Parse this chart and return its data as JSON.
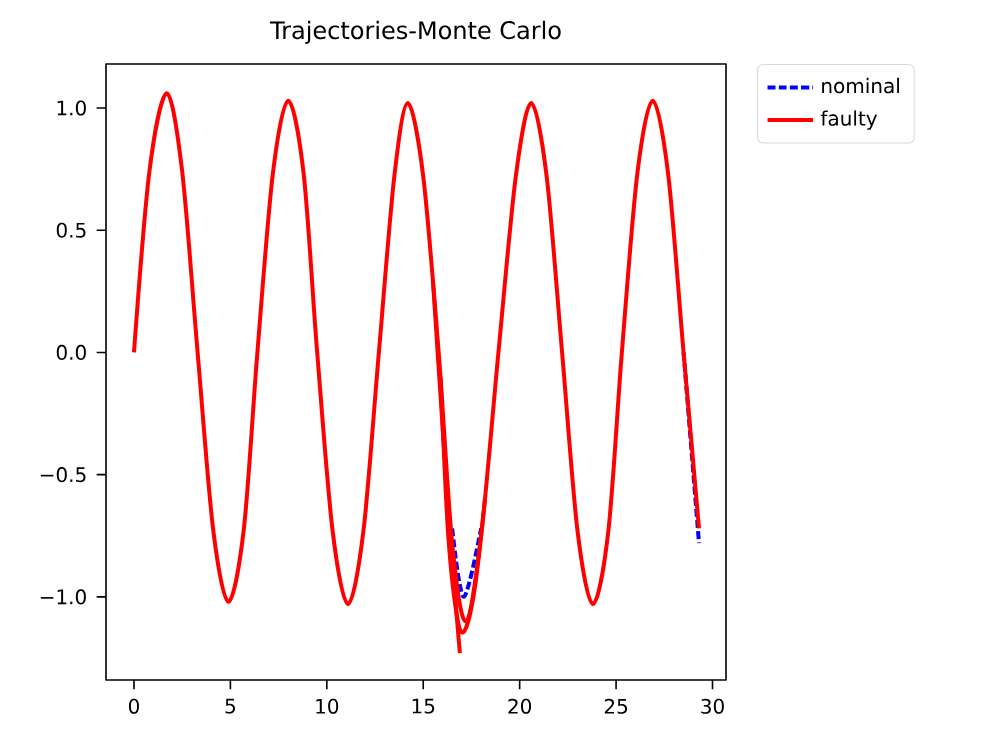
{
  "chart_data": {
    "type": "line",
    "title": "Trajectories-Monte Carlo",
    "xlim": [
      -1.45,
      30.7
    ],
    "ylim": [
      -1.34,
      1.18
    ],
    "xticks": [
      0,
      5,
      10,
      15,
      20,
      25,
      30
    ],
    "yticks": [
      {
        "value": -1,
        "label": "−1.0"
      },
      {
        "value": -0.5,
        "label": "−0.5"
      },
      {
        "value": 0,
        "label": "0.0"
      },
      {
        "value": 0.5,
        "label": "0.5"
      },
      {
        "value": 1,
        "label": "1.0"
      }
    ],
    "legend": "top right",
    "grid": false,
    "marker": "none",
    "series": [
      {
        "name": "nominal",
        "color": "#0000ff",
        "line_style": "dashed",
        "x": [
          16.5,
          17.1,
          18.0,
          23.0,
          28.5,
          29.3
        ],
        "values": [
          -0.72,
          -1.0,
          -0.72,
          null,
          0,
          -0.78
        ]
      },
      {
        "name": "faulty",
        "color": "#ff0000",
        "line_style": "solid",
        "x": [
          0,
          0.8,
          1.7,
          2.5,
          3.3,
          4.1,
          4.9,
          5.7,
          6.4,
          7.2,
          8.0,
          8.8,
          9.5,
          10.3,
          11.1,
          11.9,
          12.7,
          13.5,
          14.2,
          15.0,
          15.8,
          16.5,
          17.2,
          18.0,
          18.9,
          19.8,
          20.6,
          21.4,
          22.2,
          23.0,
          23.8,
          24.6,
          25.3,
          26.1,
          26.9,
          27.7,
          28.5,
          29.3
        ],
        "values": [
          0,
          0.74,
          1.06,
          0.74,
          0,
          -0.72,
          -1.02,
          -0.72,
          0,
          0.73,
          1.03,
          0.73,
          0,
          -0.73,
          -1.03,
          -0.73,
          0,
          0.72,
          1.02,
          0.72,
          0,
          -0.78,
          -1.1,
          -0.75,
          0,
          0.72,
          1.02,
          0.72,
          0,
          -0.73,
          -1.03,
          -0.73,
          0,
          0.73,
          1.03,
          0.73,
          0,
          -0.72
        ]
      },
      {
        "color": "#ff0000",
        "line_style": "solid",
        "x": [
          15.5,
          16.0,
          16.5,
          16.9
        ],
        "values": [
          0.3,
          -0.3,
          -0.85,
          -1.23
        ]
      },
      {
        "color": "#ff0000",
        "line_style": "solid",
        "x": [
          15.9,
          16.3,
          16.8,
          17.2,
          17.7,
          18.2
        ],
        "values": [
          -0.1,
          -0.75,
          -1.1,
          -1.13,
          -0.95,
          -0.6
        ]
      }
    ]
  }
}
